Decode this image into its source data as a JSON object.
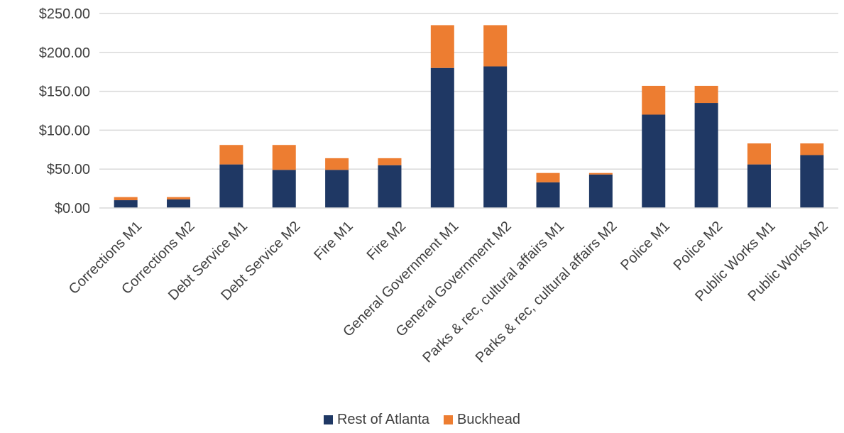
{
  "chart_data": {
    "type": "bar",
    "stacked": true,
    "title": "",
    "xlabel": "",
    "ylabel": "",
    "categories": [
      "Corrections M1",
      "Corrections M2",
      "Debt Service M1",
      "Debt Service M2",
      "Fire M1",
      "Fire M2",
      "General Government M1",
      "General Government M2",
      "Parks & rec, cultural affairs M1",
      "Parks & rec, cultural affairs M2",
      "Police M1",
      "Police M2",
      "Public Works M1",
      "Public Works M2"
    ],
    "series": [
      {
        "name": "Rest of Atlanta",
        "color": "#1f3864",
        "values": [
          10,
          11,
          56,
          49,
          49,
          55,
          180,
          182,
          33,
          43,
          120,
          135,
          56,
          68
        ]
      },
      {
        "name": "Buckhead",
        "color": "#ed7d31",
        "values": [
          4,
          3,
          25,
          32,
          15,
          9,
          55,
          53,
          12,
          2,
          37,
          22,
          27,
          15
        ]
      }
    ],
    "ylim": [
      0,
      250
    ],
    "yticks": [
      0,
      50,
      100,
      150,
      200,
      250
    ],
    "ytick_labels": [
      "$0.00",
      "$50.00",
      "$100.00",
      "$150.00",
      "$200.00",
      "$250.00"
    ],
    "grid": true,
    "gridline_color": "#d9d9d9",
    "legend_position": "bottom"
  }
}
